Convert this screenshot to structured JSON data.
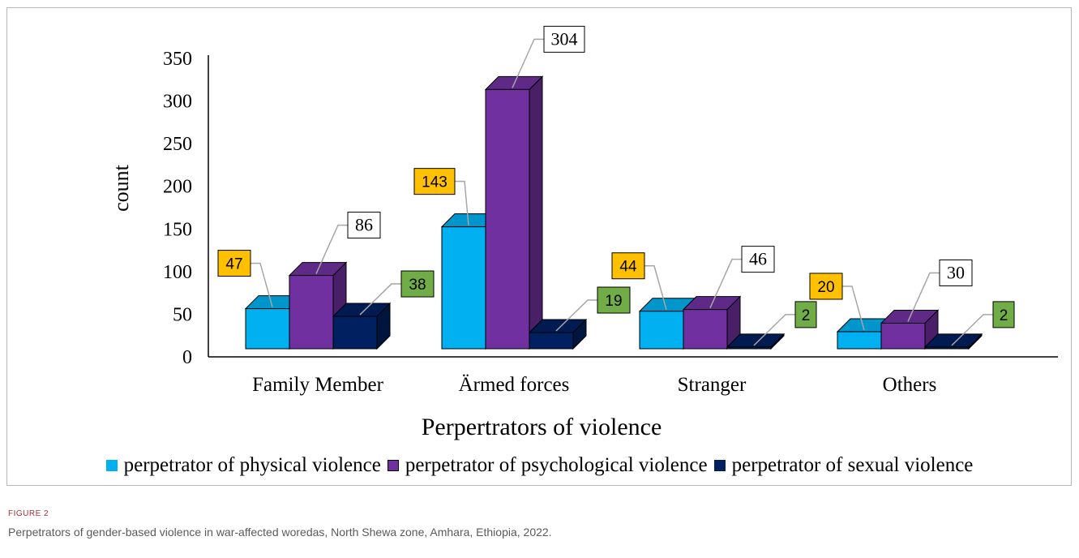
{
  "chart_data": {
    "type": "bar",
    "categories": [
      "Family Member",
      "Ärmed forces",
      "Stranger",
      "Others"
    ],
    "series": [
      {
        "name": "perpetrator of physical violence",
        "values": [
          47,
          143,
          44,
          20
        ],
        "color": "#00b0f0",
        "label_style": "yellow"
      },
      {
        "name": "perpetrator of psychological violence",
        "values": [
          86,
          304,
          46,
          30
        ],
        "color": "#7030a0",
        "label_style": "white"
      },
      {
        "name": "perpetrator of sexual violence",
        "values": [
          38,
          19,
          2,
          2
        ],
        "color": "#002060",
        "label_style": "green"
      }
    ],
    "xlabel": "Perpertrators of violence",
    "ylabel": "count",
    "ylim": [
      0,
      350
    ],
    "yticks": [
      0,
      50,
      100,
      150,
      200,
      250,
      300,
      350
    ],
    "grid": false,
    "legend_position": "bottom",
    "style": "3d-clustered-column"
  },
  "figure": {
    "label": "FIGURE 2",
    "caption": "Perpetrators of gender-based violence in war-affected woredas, North Shewa zone, Amhara, Ethiopia, 2022."
  },
  "colors": {
    "label_yellow": "#ffc000",
    "label_green": "#70ad47",
    "label_white": "#ffffff"
  }
}
